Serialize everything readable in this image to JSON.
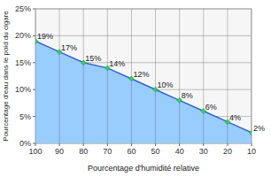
{
  "chart_data": {
    "type": "area",
    "x_label": "Pourcentage d'humidité relative",
    "y_label": "Pourcentage d'eau dans le poid du cigare",
    "categories": [
      "100",
      "90",
      "80",
      "70",
      "60",
      "50",
      "40",
      "30",
      "20",
      "10"
    ],
    "values": [
      19,
      17,
      15,
      14,
      12,
      10,
      8,
      6,
      4,
      2
    ],
    "value_labels": [
      "19%",
      "17%",
      "15%",
      "14%",
      "12%",
      "10%",
      "8%",
      "6%",
      "4%",
      "2%"
    ],
    "color": "#99ccff",
    "marker": "diamond",
    "data_labels": true,
    "grid": true,
    "ylim": [
      0,
      25
    ],
    "yticks": [
      {
        "value": 0,
        "label": "0%"
      },
      {
        "value": 5,
        "label": "5%"
      },
      {
        "value": 10,
        "label": "10%"
      },
      {
        "value": 15,
        "label": "15%"
      },
      {
        "value": 20,
        "label": "20%"
      },
      {
        "value": 25,
        "label": "25%"
      }
    ]
  }
}
